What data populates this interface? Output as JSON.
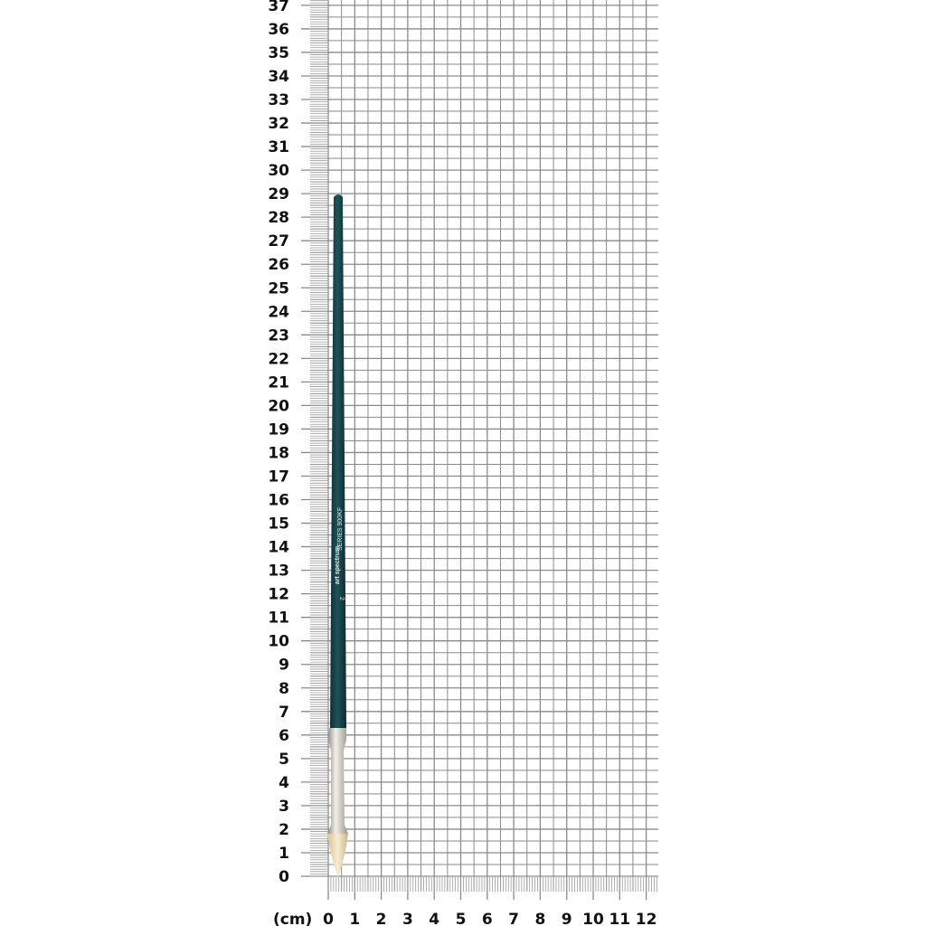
{
  "unit_label": "(cm)",
  "vertical_scale": {
    "min": 0,
    "max": 37
  },
  "horizontal_scale": {
    "min": 0,
    "max": 12
  },
  "brush": {
    "brand": "art spectrum",
    "logo": "AS",
    "series": "SERIES  900KF",
    "size": "2",
    "length_cm": 29,
    "handle_color": "#163f45",
    "ferrule_color": "#c9c4bb",
    "bristle_color": "#ecdcb8"
  },
  "grid_color": "#8a8a8a"
}
